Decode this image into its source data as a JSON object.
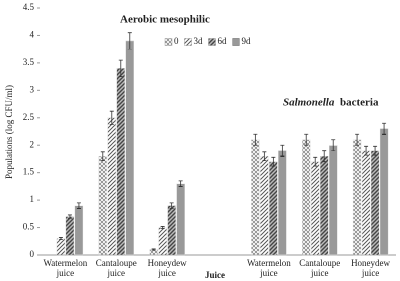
{
  "chart_data": {
    "type": "bar",
    "categories": [
      "Watermelon juice",
      "Cantaloupe juice",
      "Honeydew juice",
      null,
      "Watermelon juice",
      "Cantaloupe juice",
      "Honeydew juice"
    ],
    "series": [
      {
        "name": "0",
        "color": "#777777",
        "values": [
          0,
          1.8,
          0.1,
          null,
          2.1,
          2.1,
          2.1
        ],
        "errors": [
          null,
          0.08,
          0.01,
          null,
          0.1,
          0.1,
          0.1
        ]
      },
      {
        "name": "3d",
        "color": "#555555",
        "values": [
          0.3,
          2.5,
          0.5,
          null,
          1.8,
          1.7,
          1.9
        ],
        "errors": [
          0.02,
          0.12,
          0.02,
          null,
          0.08,
          0.08,
          0.08
        ]
      },
      {
        "name": "6d",
        "color": "#444444",
        "values": [
          0.7,
          3.4,
          0.9,
          null,
          1.7,
          1.8,
          1.9
        ],
        "errors": [
          0.03,
          0.15,
          0.05,
          null,
          0.08,
          0.1,
          0.08
        ]
      },
      {
        "name": "9d",
        "color": "#333333",
        "values": [
          0.9,
          3.9,
          1.3,
          null,
          1.9,
          2.0,
          2.3
        ],
        "errors": [
          0.05,
          0.15,
          0.05,
          null,
          0.1,
          0.1,
          0.1
        ]
      }
    ],
    "ylim": [
      0,
      4.5
    ],
    "yticks": [
      0,
      0.5,
      1,
      1.5,
      2,
      2.5,
      3,
      3.5,
      4,
      4.5
    ],
    "y_label": "Populations (log CFU/ml)",
    "x_label": "Juice",
    "annotations": [
      "Aerobic mesophilic",
      "Salmonella",
      "bacteria"
    ]
  }
}
